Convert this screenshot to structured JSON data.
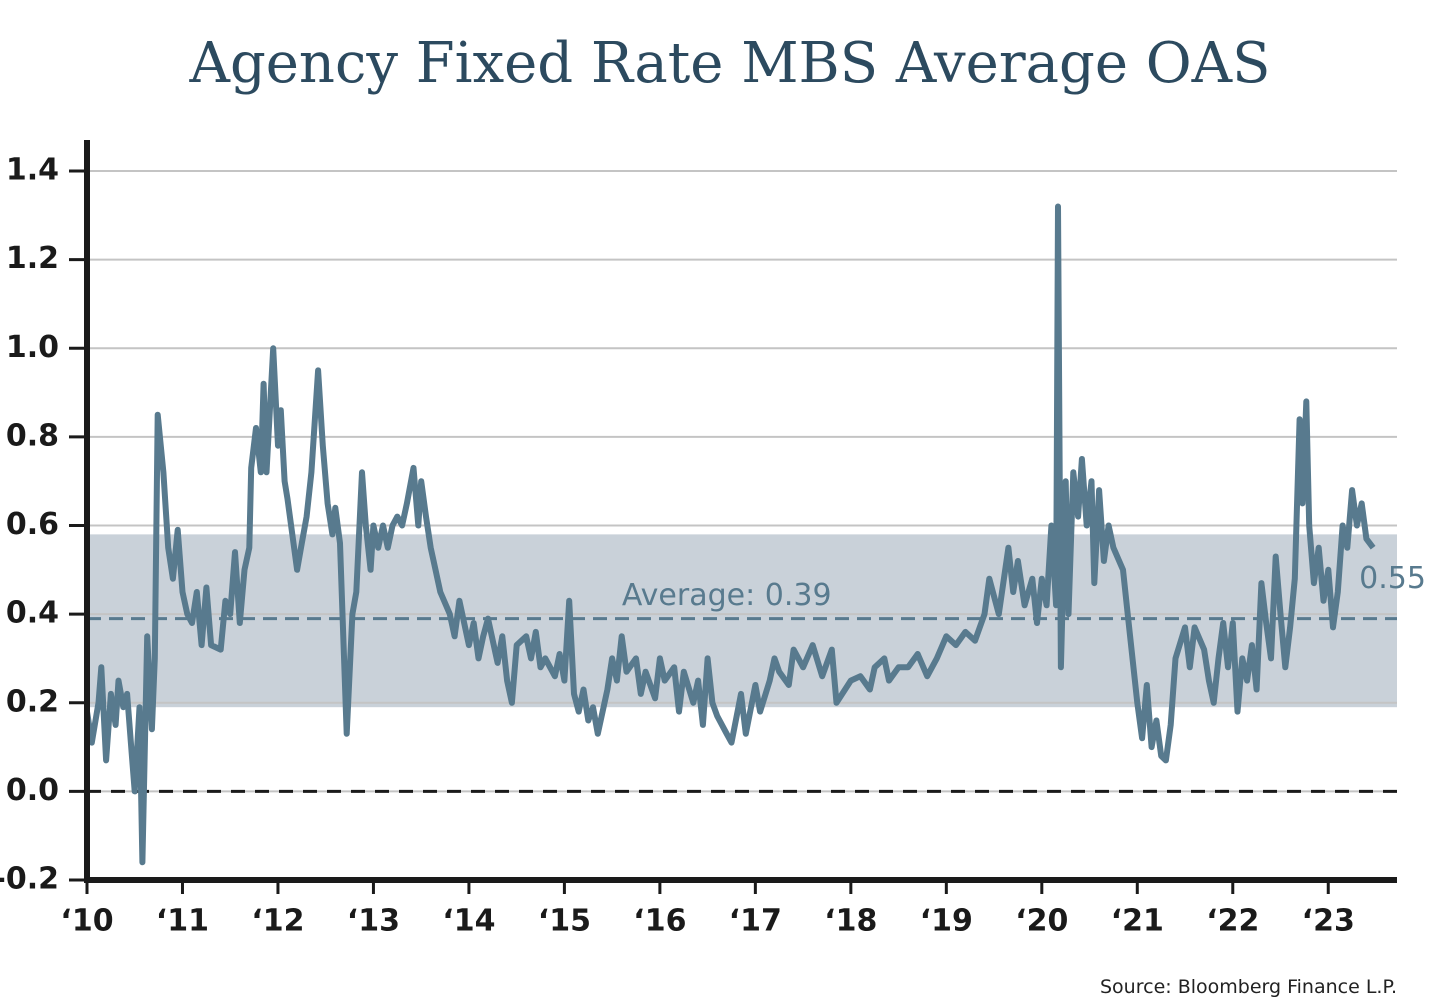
{
  "chart_data": {
    "type": "line",
    "title": "Agency Fixed Rate MBS Average OAS",
    "source": "Source: Bloomberg Finance L.P.",
    "xlim": [
      2010,
      2023.72
    ],
    "xticks": [
      {
        "value": 2010,
        "label": "‘10"
      },
      {
        "value": 2011,
        "label": "‘11"
      },
      {
        "value": 2012,
        "label": "‘12"
      },
      {
        "value": 2013,
        "label": "‘13"
      },
      {
        "value": 2014,
        "label": "‘14"
      },
      {
        "value": 2015,
        "label": "‘15"
      },
      {
        "value": 2016,
        "label": "‘16"
      },
      {
        "value": 2017,
        "label": "‘17"
      },
      {
        "value": 2018,
        "label": "‘18"
      },
      {
        "value": 2019,
        "label": "‘19"
      },
      {
        "value": 2020,
        "label": "‘20"
      },
      {
        "value": 2021,
        "label": "‘21"
      },
      {
        "value": 2022,
        "label": "‘22"
      },
      {
        "value": 2023,
        "label": "‘23"
      }
    ],
    "ylim": [
      -0.2,
      1.47
    ],
    "yticks": [
      {
        "value": -0.2,
        "label": "-0.2"
      },
      {
        "value": 0,
        "label": "0.0"
      },
      0.2,
      0.4,
      0.6,
      0.8,
      {
        "value": 1,
        "label": "1.0"
      },
      1.2,
      1.4
    ],
    "grid": true,
    "band": [
      0.19,
      0.58
    ],
    "band_color": "#c9d1d9",
    "average": {
      "value": 0.39,
      "label": "Average: 0.39"
    },
    "zero_line": 0,
    "x": [
      2010.0,
      2010.05,
      2010.12,
      2010.15,
      2010.2,
      2010.25,
      2010.3,
      2010.33,
      2010.38,
      2010.42,
      2010.47,
      2010.5,
      2010.55,
      2010.58,
      2010.63,
      2010.68,
      2010.71,
      2010.74,
      2010.8,
      2010.85,
      2010.9,
      2010.95,
      2011.0,
      2011.05,
      2011.1,
      2011.15,
      2011.2,
      2011.25,
      2011.3,
      2011.4,
      2011.45,
      2011.5,
      2011.55,
      2011.6,
      2011.65,
      2011.7,
      2011.72,
      2011.77,
      2011.82,
      2011.85,
      2011.88,
      2011.95,
      2012.0,
      2012.03,
      2012.07,
      2012.1,
      2012.15,
      2012.2,
      2012.25,
      2012.3,
      2012.35,
      2012.42,
      2012.47,
      2012.52,
      2012.57,
      2012.6,
      2012.65,
      2012.72,
      2012.78,
      2012.82,
      2012.88,
      2012.92,
      2012.97,
      2013.0,
      2013.05,
      2013.1,
      2013.15,
      2013.2,
      2013.25,
      2013.3,
      2013.35,
      2013.42,
      2013.47,
      2013.5,
      2013.55,
      2013.6,
      2013.65,
      2013.7,
      2013.8,
      2013.85,
      2013.9,
      2014.0,
      2014.05,
      2014.1,
      2014.15,
      2014.2,
      2014.3,
      2014.35,
      2014.4,
      2014.45,
      2014.5,
      2014.6,
      2014.65,
      2014.7,
      2014.75,
      2014.8,
      2014.9,
      2014.95,
      2015.0,
      2015.05,
      2015.1,
      2015.15,
      2015.2,
      2015.25,
      2015.3,
      2015.35,
      2015.45,
      2015.5,
      2015.55,
      2015.6,
      2015.65,
      2015.75,
      2015.8,
      2015.85,
      2015.95,
      2016.0,
      2016.05,
      2016.15,
      2016.2,
      2016.25,
      2016.35,
      2016.4,
      2016.45,
      2016.5,
      2016.55,
      2016.6,
      2016.7,
      2016.75,
      2016.85,
      2016.9,
      2017.0,
      2017.05,
      2017.15,
      2017.2,
      2017.25,
      2017.35,
      2017.4,
      2017.5,
      2017.6,
      2017.7,
      2017.75,
      2017.8,
      2017.85,
      2018.0,
      2018.1,
      2018.2,
      2018.25,
      2018.35,
      2018.4,
      2018.5,
      2018.6,
      2018.7,
      2018.8,
      2018.9,
      2019.0,
      2019.1,
      2019.2,
      2019.3,
      2019.4,
      2019.45,
      2019.55,
      2019.65,
      2019.7,
      2019.75,
      2019.82,
      2019.9,
      2019.95,
      2020.0,
      2020.05,
      2020.1,
      2020.15,
      2020.17,
      2020.2,
      2020.25,
      2020.28,
      2020.33,
      2020.38,
      2020.42,
      2020.47,
      2020.52,
      2020.55,
      2020.6,
      2020.65,
      2020.7,
      2020.75,
      2020.85,
      2020.9,
      2021.0,
      2021.05,
      2021.1,
      2021.15,
      2021.2,
      2021.25,
      2021.3,
      2021.35,
      2021.4,
      2021.5,
      2021.55,
      2021.6,
      2021.7,
      2021.75,
      2021.8,
      2021.85,
      2021.9,
      2021.95,
      2022.0,
      2022.05,
      2022.1,
      2022.15,
      2022.2,
      2022.25,
      2022.3,
      2022.35,
      2022.4,
      2022.45,
      2022.5,
      2022.55,
      2022.6,
      2022.65,
      2022.7,
      2022.73,
      2022.77,
      2022.8,
      2022.85,
      2022.9,
      2022.95,
      2023.0,
      2023.05,
      2023.1,
      2023.15,
      2023.2,
      2023.25,
      2023.3,
      2023.35,
      2023.4,
      2023.47
    ],
    "series": [
      {
        "name": "Agency Fixed Rate MBS Average OAS",
        "color": "#587a8e",
        "values": [
          0.18,
          0.11,
          0.2,
          0.28,
          0.07,
          0.22,
          0.15,
          0.25,
          0.19,
          0.22,
          0.08,
          0.0,
          0.19,
          -0.16,
          0.35,
          0.14,
          0.3,
          0.85,
          0.72,
          0.55,
          0.48,
          0.59,
          0.45,
          0.4,
          0.38,
          0.45,
          0.33,
          0.46,
          0.33,
          0.32,
          0.43,
          0.4,
          0.54,
          0.38,
          0.5,
          0.55,
          0.73,
          0.82,
          0.72,
          0.92,
          0.72,
          1.0,
          0.78,
          0.86,
          0.7,
          0.66,
          0.58,
          0.5,
          0.56,
          0.62,
          0.72,
          0.95,
          0.78,
          0.65,
          0.58,
          0.64,
          0.56,
          0.13,
          0.4,
          0.45,
          0.72,
          0.6,
          0.5,
          0.6,
          0.55,
          0.6,
          0.55,
          0.6,
          0.62,
          0.6,
          0.65,
          0.73,
          0.6,
          0.7,
          0.62,
          0.55,
          0.5,
          0.45,
          0.4,
          0.35,
          0.43,
          0.33,
          0.38,
          0.3,
          0.35,
          0.39,
          0.29,
          0.35,
          0.25,
          0.2,
          0.33,
          0.35,
          0.3,
          0.36,
          0.28,
          0.3,
          0.26,
          0.31,
          0.25,
          0.43,
          0.22,
          0.18,
          0.23,
          0.16,
          0.19,
          0.13,
          0.23,
          0.3,
          0.25,
          0.35,
          0.27,
          0.3,
          0.22,
          0.27,
          0.21,
          0.3,
          0.25,
          0.28,
          0.18,
          0.27,
          0.2,
          0.25,
          0.15,
          0.3,
          0.2,
          0.17,
          0.13,
          0.11,
          0.22,
          0.13,
          0.24,
          0.18,
          0.25,
          0.3,
          0.27,
          0.24,
          0.32,
          0.28,
          0.33,
          0.26,
          0.29,
          0.32,
          0.2,
          0.25,
          0.26,
          0.23,
          0.28,
          0.3,
          0.25,
          0.28,
          0.28,
          0.31,
          0.26,
          0.3,
          0.35,
          0.33,
          0.36,
          0.34,
          0.4,
          0.48,
          0.4,
          0.55,
          0.45,
          0.52,
          0.42,
          0.48,
          0.38,
          0.48,
          0.42,
          0.6,
          0.42,
          1.32,
          0.28,
          0.7,
          0.4,
          0.72,
          0.62,
          0.75,
          0.6,
          0.7,
          0.47,
          0.68,
          0.52,
          0.6,
          0.55,
          0.5,
          0.4,
          0.2,
          0.12,
          0.24,
          0.1,
          0.16,
          0.08,
          0.07,
          0.15,
          0.3,
          0.37,
          0.28,
          0.37,
          0.32,
          0.25,
          0.2,
          0.3,
          0.38,
          0.28,
          0.38,
          0.18,
          0.3,
          0.25,
          0.33,
          0.23,
          0.47,
          0.38,
          0.3,
          0.53,
          0.4,
          0.28,
          0.37,
          0.48,
          0.84,
          0.65,
          0.88,
          0.6,
          0.47,
          0.55,
          0.43,
          0.5,
          0.37,
          0.45,
          0.6,
          0.55,
          0.68,
          0.6,
          0.65,
          0.57,
          0.55
        ]
      }
    ]
  }
}
